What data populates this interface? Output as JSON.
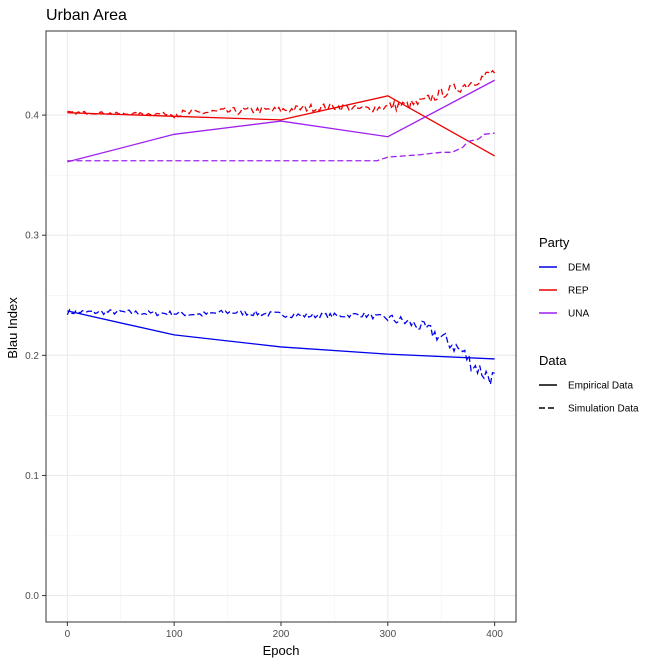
{
  "chart_data": {
    "type": "line",
    "title": "Urban Area",
    "xlabel": "Epoch",
    "ylabel": "Blau Index",
    "xlim": [
      -20,
      420
    ],
    "ylim": [
      -0.022,
      0.47
    ],
    "x_ticks": [
      0,
      100,
      200,
      300,
      400
    ],
    "y_ticks": [
      0.0,
      0.1,
      0.2,
      0.3,
      0.4
    ],
    "x_tick_labels": [
      "0",
      "100",
      "200",
      "300",
      "400"
    ],
    "y_tick_labels": [
      "0.0",
      "0.1",
      "0.2",
      "0.3",
      "0.4"
    ],
    "grid": true,
    "legend_position": "right",
    "legend": {
      "party": {
        "title": "Party",
        "items": [
          {
            "key": "DEM",
            "label": "DEM",
            "color": "#0000ee"
          },
          {
            "key": "REP",
            "label": "REP",
            "color": "#ee0000"
          },
          {
            "key": "UNA",
            "label": "UNA",
            "color": "#a020f0"
          }
        ]
      },
      "data": {
        "title": "Data",
        "items": [
          {
            "key": "empirical",
            "label": "Empirical Data",
            "dash": "solid"
          },
          {
            "key": "simulation",
            "label": "Simulation Data",
            "dash": "dashed"
          }
        ]
      }
    },
    "empirical": [
      {
        "party": "DEM",
        "x": [
          0,
          100,
          200,
          300,
          400
        ],
        "y": [
          0.237,
          0.217,
          0.207,
          0.201,
          0.197
        ]
      },
      {
        "party": "REP",
        "x": [
          0,
          100,
          200,
          300,
          400
        ],
        "y": [
          0.402,
          0.399,
          0.396,
          0.416,
          0.366
        ]
      },
      {
        "party": "UNA",
        "x": [
          0,
          100,
          200,
          300,
          400
        ],
        "y": [
          0.361,
          0.384,
          0.395,
          0.382,
          0.429
        ]
      }
    ],
    "simulation": [
      {
        "party": "DEM",
        "x": [
          0,
          25,
          50,
          75,
          100,
          125,
          150,
          175,
          200,
          225,
          250,
          275,
          290,
          300,
          310,
          320,
          330,
          340,
          350,
          360,
          370,
          375,
          380,
          385,
          390,
          395,
          400
        ],
        "y": [
          0.236,
          0.236,
          0.236,
          0.235,
          0.235,
          0.234,
          0.236,
          0.235,
          0.234,
          0.233,
          0.233,
          0.234,
          0.232,
          0.231,
          0.229,
          0.227,
          0.224,
          0.22,
          0.215,
          0.209,
          0.203,
          0.197,
          0.192,
          0.189,
          0.185,
          0.183,
          0.18
        ]
      },
      {
        "party": "REP",
        "x": [
          0,
          25,
          50,
          75,
          100,
          125,
          150,
          175,
          200,
          225,
          250,
          275,
          290,
          300,
          310,
          320,
          330,
          340,
          350,
          360,
          370,
          380,
          390,
          400
        ],
        "y": [
          0.402,
          0.402,
          0.401,
          0.401,
          0.401,
          0.402,
          0.403,
          0.404,
          0.404,
          0.406,
          0.407,
          0.405,
          0.406,
          0.407,
          0.408,
          0.408,
          0.41,
          0.414,
          0.418,
          0.421,
          0.424,
          0.428,
          0.432,
          0.436
        ]
      },
      {
        "party": "UNA",
        "x": [
          0,
          50,
          100,
          150,
          200,
          250,
          275,
          290,
          300,
          330,
          350,
          360,
          370,
          375,
          385,
          390,
          400
        ],
        "y": [
          0.362,
          0.362,
          0.362,
          0.362,
          0.362,
          0.362,
          0.362,
          0.362,
          0.365,
          0.367,
          0.369,
          0.369,
          0.373,
          0.378,
          0.38,
          0.384,
          0.385
        ]
      }
    ]
  }
}
